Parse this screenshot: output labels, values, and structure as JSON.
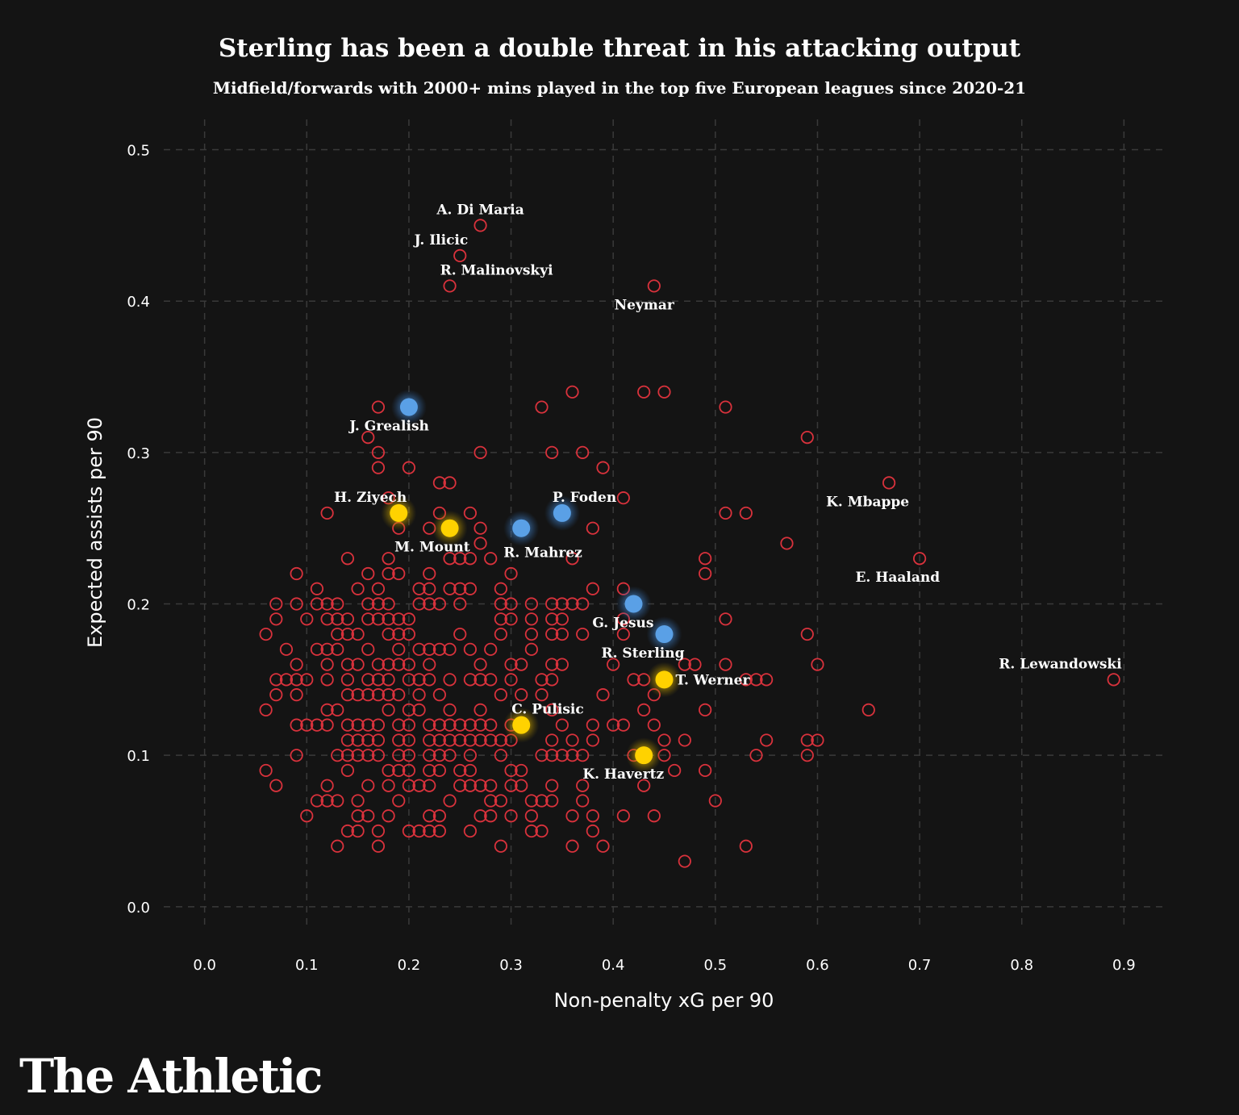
{
  "brand": "The Athletic",
  "colors": {
    "background": "#141414",
    "other": "#d9323c",
    "city": "#5aa0e6",
    "chelsea": "#ffd200"
  },
  "chart_data": {
    "type": "scatter",
    "title": "Sterling has been a double threat in his attacking output",
    "subtitle": "Midfield/forwards with 2000+ mins played in the top five European leagues since 2020-21",
    "xlabel": "Non-penalty xG per 90",
    "ylabel": "Expected assists per 90",
    "xlim": [
      -0.04,
      0.94
    ],
    "ylim": [
      -0.015,
      0.52
    ],
    "xticks": [
      0.0,
      0.1,
      0.2,
      0.3,
      0.4,
      0.5,
      0.6,
      0.7,
      0.8,
      0.9
    ],
    "yticks": [
      0.0,
      0.1,
      0.2,
      0.3,
      0.4,
      0.5
    ],
    "xtick_labels": [
      "0.0",
      "0.1",
      "0.2",
      "0.3",
      "0.4",
      "0.5",
      "0.6",
      "0.7",
      "0.8",
      "0.9"
    ],
    "ytick_labels": [
      "0.0",
      "0.1",
      "0.2",
      "0.3",
      "0.4",
      "0.5"
    ],
    "grid": true,
    "labeled": [
      {
        "name": "A. Di Maria",
        "x": 0.27,
        "y": 0.45,
        "group": "other",
        "label_anchor": "above"
      },
      {
        "name": "J. Ilicic",
        "x": 0.25,
        "y": 0.43,
        "group": "other",
        "label_anchor": "above-left"
      },
      {
        "name": "R. Malinovskyi",
        "x": 0.24,
        "y": 0.41,
        "group": "other",
        "label_anchor": "above-right"
      },
      {
        "name": "Neymar",
        "x": 0.44,
        "y": 0.41,
        "group": "other",
        "label_anchor": "below-left"
      },
      {
        "name": "J. Grealish",
        "x": 0.2,
        "y": 0.33,
        "group": "city",
        "label_anchor": "below-left"
      },
      {
        "name": "P. Foden",
        "x": 0.35,
        "y": 0.26,
        "group": "city",
        "label_anchor": "above-right"
      },
      {
        "name": "R. Mahrez",
        "x": 0.31,
        "y": 0.25,
        "group": "city",
        "label_anchor": "below-right"
      },
      {
        "name": "G. Jesus",
        "x": 0.42,
        "y": 0.2,
        "group": "city",
        "label_anchor": "below-left"
      },
      {
        "name": "R. Sterling",
        "x": 0.45,
        "y": 0.18,
        "group": "city",
        "label_anchor": "below-left"
      },
      {
        "name": "H. Ziyech",
        "x": 0.19,
        "y": 0.26,
        "group": "chelsea",
        "label_anchor": "above-left"
      },
      {
        "name": "M. Mount",
        "x": 0.24,
        "y": 0.25,
        "group": "chelsea",
        "label_anchor": "below-left"
      },
      {
        "name": "T. Werner",
        "x": 0.45,
        "y": 0.15,
        "group": "chelsea",
        "label_anchor": "right"
      },
      {
        "name": "C. Pulisic",
        "x": 0.31,
        "y": 0.12,
        "group": "chelsea",
        "label_anchor": "above-right"
      },
      {
        "name": "K. Havertz",
        "x": 0.43,
        "y": 0.1,
        "group": "chelsea",
        "label_anchor": "below-left"
      },
      {
        "name": "K. Mbappe",
        "x": 0.67,
        "y": 0.28,
        "group": "other",
        "label_anchor": "below-left"
      },
      {
        "name": "E. Haaland",
        "x": 0.7,
        "y": 0.23,
        "group": "other",
        "label_anchor": "below-left"
      },
      {
        "name": "R. Lewandowski",
        "x": 0.89,
        "y": 0.15,
        "group": "other",
        "label_anchor": "above-left"
      }
    ],
    "others": [
      [
        0.17,
        0.33
      ],
      [
        0.33,
        0.33
      ],
      [
        0.36,
        0.34
      ],
      [
        0.43,
        0.34
      ],
      [
        0.45,
        0.34
      ],
      [
        0.51,
        0.33
      ],
      [
        0.59,
        0.31
      ],
      [
        0.16,
        0.31
      ],
      [
        0.17,
        0.3
      ],
      [
        0.2,
        0.29
      ],
      [
        0.17,
        0.29
      ],
      [
        0.27,
        0.3
      ],
      [
        0.34,
        0.3
      ],
      [
        0.37,
        0.3
      ],
      [
        0.39,
        0.29
      ],
      [
        0.23,
        0.28
      ],
      [
        0.24,
        0.28
      ],
      [
        0.18,
        0.27
      ],
      [
        0.41,
        0.27
      ],
      [
        0.12,
        0.26
      ],
      [
        0.23,
        0.26
      ],
      [
        0.26,
        0.26
      ],
      [
        0.51,
        0.26
      ],
      [
        0.53,
        0.26
      ],
      [
        0.19,
        0.25
      ],
      [
        0.22,
        0.25
      ],
      [
        0.27,
        0.25
      ],
      [
        0.38,
        0.25
      ],
      [
        0.27,
        0.24
      ],
      [
        0.57,
        0.24
      ],
      [
        0.14,
        0.23
      ],
      [
        0.18,
        0.23
      ],
      [
        0.24,
        0.23
      ],
      [
        0.25,
        0.23
      ],
      [
        0.26,
        0.23
      ],
      [
        0.28,
        0.23
      ],
      [
        0.36,
        0.23
      ],
      [
        0.49,
        0.23
      ],
      [
        0.09,
        0.22
      ],
      [
        0.16,
        0.22
      ],
      [
        0.18,
        0.22
      ],
      [
        0.19,
        0.22
      ],
      [
        0.22,
        0.22
      ],
      [
        0.3,
        0.22
      ],
      [
        0.49,
        0.22
      ],
      [
        0.11,
        0.21
      ],
      [
        0.15,
        0.21
      ],
      [
        0.17,
        0.21
      ],
      [
        0.21,
        0.21
      ],
      [
        0.22,
        0.21
      ],
      [
        0.24,
        0.21
      ],
      [
        0.25,
        0.21
      ],
      [
        0.26,
        0.21
      ],
      [
        0.29,
        0.21
      ],
      [
        0.38,
        0.21
      ],
      [
        0.41,
        0.21
      ],
      [
        0.07,
        0.2
      ],
      [
        0.09,
        0.2
      ],
      [
        0.11,
        0.2
      ],
      [
        0.12,
        0.2
      ],
      [
        0.13,
        0.2
      ],
      [
        0.16,
        0.2
      ],
      [
        0.17,
        0.2
      ],
      [
        0.18,
        0.2
      ],
      [
        0.21,
        0.2
      ],
      [
        0.22,
        0.2
      ],
      [
        0.23,
        0.2
      ],
      [
        0.25,
        0.2
      ],
      [
        0.29,
        0.2
      ],
      [
        0.3,
        0.2
      ],
      [
        0.32,
        0.2
      ],
      [
        0.34,
        0.2
      ],
      [
        0.35,
        0.2
      ],
      [
        0.36,
        0.2
      ],
      [
        0.37,
        0.2
      ],
      [
        0.07,
        0.19
      ],
      [
        0.1,
        0.19
      ],
      [
        0.12,
        0.19
      ],
      [
        0.13,
        0.19
      ],
      [
        0.14,
        0.19
      ],
      [
        0.16,
        0.19
      ],
      [
        0.17,
        0.19
      ],
      [
        0.18,
        0.19
      ],
      [
        0.19,
        0.19
      ],
      [
        0.2,
        0.19
      ],
      [
        0.29,
        0.19
      ],
      [
        0.3,
        0.19
      ],
      [
        0.32,
        0.19
      ],
      [
        0.34,
        0.19
      ],
      [
        0.35,
        0.19
      ],
      [
        0.41,
        0.19
      ],
      [
        0.51,
        0.19
      ],
      [
        0.06,
        0.18
      ],
      [
        0.13,
        0.18
      ],
      [
        0.14,
        0.18
      ],
      [
        0.15,
        0.18
      ],
      [
        0.18,
        0.18
      ],
      [
        0.19,
        0.18
      ],
      [
        0.2,
        0.18
      ],
      [
        0.25,
        0.18
      ],
      [
        0.29,
        0.18
      ],
      [
        0.32,
        0.18
      ],
      [
        0.34,
        0.18
      ],
      [
        0.35,
        0.18
      ],
      [
        0.37,
        0.18
      ],
      [
        0.41,
        0.18
      ],
      [
        0.59,
        0.18
      ],
      [
        0.08,
        0.17
      ],
      [
        0.11,
        0.17
      ],
      [
        0.12,
        0.17
      ],
      [
        0.13,
        0.17
      ],
      [
        0.16,
        0.17
      ],
      [
        0.19,
        0.17
      ],
      [
        0.21,
        0.17
      ],
      [
        0.22,
        0.17
      ],
      [
        0.23,
        0.17
      ],
      [
        0.24,
        0.17
      ],
      [
        0.26,
        0.17
      ],
      [
        0.28,
        0.17
      ],
      [
        0.32,
        0.17
      ],
      [
        0.09,
        0.16
      ],
      [
        0.12,
        0.16
      ],
      [
        0.14,
        0.16
      ],
      [
        0.15,
        0.16
      ],
      [
        0.17,
        0.16
      ],
      [
        0.18,
        0.16
      ],
      [
        0.19,
        0.16
      ],
      [
        0.2,
        0.16
      ],
      [
        0.22,
        0.16
      ],
      [
        0.27,
        0.16
      ],
      [
        0.3,
        0.16
      ],
      [
        0.31,
        0.16
      ],
      [
        0.34,
        0.16
      ],
      [
        0.35,
        0.16
      ],
      [
        0.4,
        0.16
      ],
      [
        0.47,
        0.16
      ],
      [
        0.48,
        0.16
      ],
      [
        0.51,
        0.16
      ],
      [
        0.6,
        0.16
      ],
      [
        0.07,
        0.15
      ],
      [
        0.08,
        0.15
      ],
      [
        0.09,
        0.15
      ],
      [
        0.1,
        0.15
      ],
      [
        0.12,
        0.15
      ],
      [
        0.14,
        0.15
      ],
      [
        0.16,
        0.15
      ],
      [
        0.17,
        0.15
      ],
      [
        0.18,
        0.15
      ],
      [
        0.2,
        0.15
      ],
      [
        0.21,
        0.15
      ],
      [
        0.22,
        0.15
      ],
      [
        0.24,
        0.15
      ],
      [
        0.26,
        0.15
      ],
      [
        0.27,
        0.15
      ],
      [
        0.28,
        0.15
      ],
      [
        0.3,
        0.15
      ],
      [
        0.33,
        0.15
      ],
      [
        0.34,
        0.15
      ],
      [
        0.42,
        0.15
      ],
      [
        0.43,
        0.15
      ],
      [
        0.53,
        0.15
      ],
      [
        0.54,
        0.15
      ],
      [
        0.55,
        0.15
      ],
      [
        0.07,
        0.14
      ],
      [
        0.09,
        0.14
      ],
      [
        0.14,
        0.14
      ],
      [
        0.15,
        0.14
      ],
      [
        0.16,
        0.14
      ],
      [
        0.17,
        0.14
      ],
      [
        0.18,
        0.14
      ],
      [
        0.19,
        0.14
      ],
      [
        0.21,
        0.14
      ],
      [
        0.23,
        0.14
      ],
      [
        0.29,
        0.14
      ],
      [
        0.31,
        0.14
      ],
      [
        0.33,
        0.14
      ],
      [
        0.39,
        0.14
      ],
      [
        0.44,
        0.14
      ],
      [
        0.06,
        0.13
      ],
      [
        0.12,
        0.13
      ],
      [
        0.13,
        0.13
      ],
      [
        0.18,
        0.13
      ],
      [
        0.2,
        0.13
      ],
      [
        0.21,
        0.13
      ],
      [
        0.24,
        0.13
      ],
      [
        0.27,
        0.13
      ],
      [
        0.34,
        0.13
      ],
      [
        0.43,
        0.13
      ],
      [
        0.49,
        0.13
      ],
      [
        0.65,
        0.13
      ],
      [
        0.09,
        0.12
      ],
      [
        0.1,
        0.12
      ],
      [
        0.11,
        0.12
      ],
      [
        0.12,
        0.12
      ],
      [
        0.14,
        0.12
      ],
      [
        0.15,
        0.12
      ],
      [
        0.16,
        0.12
      ],
      [
        0.17,
        0.12
      ],
      [
        0.19,
        0.12
      ],
      [
        0.2,
        0.12
      ],
      [
        0.22,
        0.12
      ],
      [
        0.23,
        0.12
      ],
      [
        0.24,
        0.12
      ],
      [
        0.25,
        0.12
      ],
      [
        0.26,
        0.12
      ],
      [
        0.27,
        0.12
      ],
      [
        0.28,
        0.12
      ],
      [
        0.3,
        0.12
      ],
      [
        0.35,
        0.12
      ],
      [
        0.38,
        0.12
      ],
      [
        0.4,
        0.12
      ],
      [
        0.41,
        0.12
      ],
      [
        0.44,
        0.12
      ],
      [
        0.14,
        0.11
      ],
      [
        0.15,
        0.11
      ],
      [
        0.16,
        0.11
      ],
      [
        0.17,
        0.11
      ],
      [
        0.19,
        0.11
      ],
      [
        0.2,
        0.11
      ],
      [
        0.22,
        0.11
      ],
      [
        0.23,
        0.11
      ],
      [
        0.24,
        0.11
      ],
      [
        0.25,
        0.11
      ],
      [
        0.26,
        0.11
      ],
      [
        0.27,
        0.11
      ],
      [
        0.28,
        0.11
      ],
      [
        0.29,
        0.11
      ],
      [
        0.3,
        0.11
      ],
      [
        0.34,
        0.11
      ],
      [
        0.36,
        0.11
      ],
      [
        0.38,
        0.11
      ],
      [
        0.45,
        0.11
      ],
      [
        0.47,
        0.11
      ],
      [
        0.55,
        0.11
      ],
      [
        0.59,
        0.11
      ],
      [
        0.6,
        0.11
      ],
      [
        0.09,
        0.1
      ],
      [
        0.13,
        0.1
      ],
      [
        0.14,
        0.1
      ],
      [
        0.15,
        0.1
      ],
      [
        0.16,
        0.1
      ],
      [
        0.17,
        0.1
      ],
      [
        0.19,
        0.1
      ],
      [
        0.2,
        0.1
      ],
      [
        0.22,
        0.1
      ],
      [
        0.23,
        0.1
      ],
      [
        0.24,
        0.1
      ],
      [
        0.26,
        0.1
      ],
      [
        0.29,
        0.1
      ],
      [
        0.33,
        0.1
      ],
      [
        0.34,
        0.1
      ],
      [
        0.35,
        0.1
      ],
      [
        0.36,
        0.1
      ],
      [
        0.37,
        0.1
      ],
      [
        0.42,
        0.1
      ],
      [
        0.45,
        0.1
      ],
      [
        0.54,
        0.1
      ],
      [
        0.59,
        0.1
      ],
      [
        0.06,
        0.09
      ],
      [
        0.14,
        0.09
      ],
      [
        0.18,
        0.09
      ],
      [
        0.19,
        0.09
      ],
      [
        0.2,
        0.09
      ],
      [
        0.22,
        0.09
      ],
      [
        0.23,
        0.09
      ],
      [
        0.25,
        0.09
      ],
      [
        0.26,
        0.09
      ],
      [
        0.3,
        0.09
      ],
      [
        0.31,
        0.09
      ],
      [
        0.46,
        0.09
      ],
      [
        0.49,
        0.09
      ],
      [
        0.07,
        0.08
      ],
      [
        0.12,
        0.08
      ],
      [
        0.16,
        0.08
      ],
      [
        0.18,
        0.08
      ],
      [
        0.2,
        0.08
      ],
      [
        0.21,
        0.08
      ],
      [
        0.22,
        0.08
      ],
      [
        0.25,
        0.08
      ],
      [
        0.26,
        0.08
      ],
      [
        0.27,
        0.08
      ],
      [
        0.28,
        0.08
      ],
      [
        0.3,
        0.08
      ],
      [
        0.31,
        0.08
      ],
      [
        0.34,
        0.08
      ],
      [
        0.37,
        0.08
      ],
      [
        0.43,
        0.08
      ],
      [
        0.11,
        0.07
      ],
      [
        0.12,
        0.07
      ],
      [
        0.13,
        0.07
      ],
      [
        0.15,
        0.07
      ],
      [
        0.19,
        0.07
      ],
      [
        0.24,
        0.07
      ],
      [
        0.28,
        0.07
      ],
      [
        0.29,
        0.07
      ],
      [
        0.32,
        0.07
      ],
      [
        0.33,
        0.07
      ],
      [
        0.34,
        0.07
      ],
      [
        0.37,
        0.07
      ],
      [
        0.5,
        0.07
      ],
      [
        0.1,
        0.06
      ],
      [
        0.15,
        0.06
      ],
      [
        0.16,
        0.06
      ],
      [
        0.18,
        0.06
      ],
      [
        0.22,
        0.06
      ],
      [
        0.23,
        0.06
      ],
      [
        0.27,
        0.06
      ],
      [
        0.28,
        0.06
      ],
      [
        0.3,
        0.06
      ],
      [
        0.32,
        0.06
      ],
      [
        0.36,
        0.06
      ],
      [
        0.38,
        0.06
      ],
      [
        0.41,
        0.06
      ],
      [
        0.44,
        0.06
      ],
      [
        0.14,
        0.05
      ],
      [
        0.15,
        0.05
      ],
      [
        0.17,
        0.05
      ],
      [
        0.2,
        0.05
      ],
      [
        0.21,
        0.05
      ],
      [
        0.22,
        0.05
      ],
      [
        0.23,
        0.05
      ],
      [
        0.26,
        0.05
      ],
      [
        0.32,
        0.05
      ],
      [
        0.33,
        0.05
      ],
      [
        0.38,
        0.05
      ],
      [
        0.13,
        0.04
      ],
      [
        0.17,
        0.04
      ],
      [
        0.29,
        0.04
      ],
      [
        0.36,
        0.04
      ],
      [
        0.39,
        0.04
      ],
      [
        0.53,
        0.04
      ],
      [
        0.47,
        0.03
      ]
    ]
  }
}
